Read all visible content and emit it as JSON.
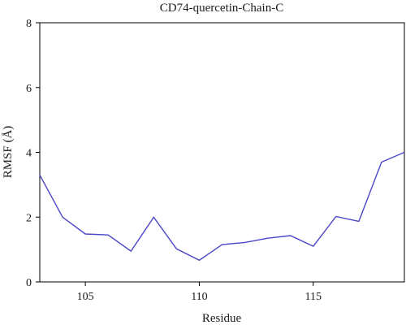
{
  "chart_data": {
    "type": "line",
    "title": "CD74-quercetin-Chain-C",
    "xlabel": "Residue",
    "ylabel": "RMSF (Å)",
    "xlim": [
      103,
      119
    ],
    "ylim": [
      0,
      8
    ],
    "xticks": [
      105,
      110,
      115
    ],
    "yticks": [
      0,
      2,
      4,
      6,
      8
    ],
    "grid": false,
    "line_color": "#4b46c8",
    "series": [
      {
        "x": [
          103,
          104,
          105,
          106,
          107,
          108,
          109,
          110,
          111,
          112,
          113,
          114,
          115,
          116,
          117,
          118,
          119
        ],
        "y": [
          3.3,
          2.0,
          1.48,
          1.45,
          0.95,
          2.0,
          1.02,
          0.67,
          1.15,
          1.22,
          1.35,
          1.43,
          1.1,
          2.02,
          1.87,
          3.7,
          4.0
        ]
      }
    ]
  }
}
